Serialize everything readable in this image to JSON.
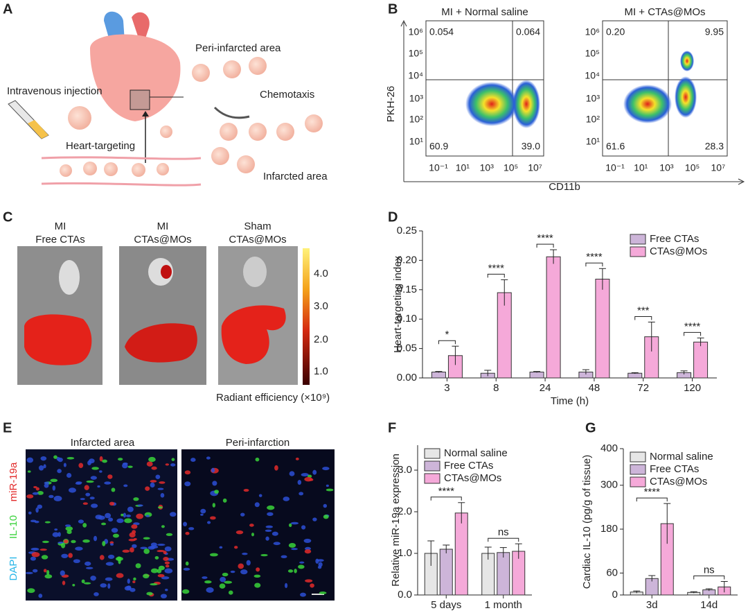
{
  "panel_a": {
    "letter": "A",
    "peri_label": "Peri-infarcted area",
    "injection_label": "Intravenous injection",
    "chemotaxis_label": "Chemotaxis",
    "targeting_label": "Heart-targeting",
    "infarct_label": "Infarcted area"
  },
  "panel_b": {
    "letter": "B",
    "x_label": "CD11b",
    "y_label": "PKH-26",
    "plots": [
      {
        "title": "MI + Normal saline",
        "quadrants": [
          "0.054",
          "0.064",
          "60.9",
          "39.0"
        ]
      },
      {
        "title": "MI + CTAs@MOs",
        "quadrants": [
          "0.20",
          "9.95",
          "61.6",
          "28.3"
        ]
      }
    ],
    "x_ticks": [
      "10⁻¹",
      "10¹",
      "10³",
      "10⁵",
      "10⁷"
    ],
    "y_ticks": [
      "10⁶",
      "10⁵",
      "10⁴",
      "10³",
      "10²",
      "10¹"
    ]
  },
  "panel_c": {
    "letter": "C",
    "groups": [
      [
        "MI",
        "Free CTAs"
      ],
      [
        "MI",
        "CTAs@MOs"
      ],
      [
        "Sham",
        "CTAs@MOs"
      ]
    ],
    "colorbar_ticks": [
      "4.0",
      "3.0",
      "2.0",
      "1.0"
    ],
    "colorbar_label": "Radiant efficiency (×10⁹)"
  },
  "panel_e": {
    "letter": "E",
    "titles": [
      "Infarcted area",
      "Peri-infarction"
    ],
    "channels": [
      "miR-19a",
      "IL-10",
      "DAPI"
    ]
  },
  "chart_data": [
    {
      "type": "bar",
      "letter": "D",
      "y_label": "Heart-targeting index",
      "x_label": "Time (h)",
      "categories": [
        "3",
        "8",
        "24",
        "48",
        "72",
        "120"
      ],
      "series": [
        {
          "name": "Free CTAs",
          "color": "#cdb5d9",
          "values": [
            0.01,
            0.008,
            0.01,
            0.01,
            0.008,
            0.009
          ],
          "errors": [
            0.001,
            0.005,
            0.001,
            0.004,
            0.001,
            0.003
          ]
        },
        {
          "name": "CTAs@MOs",
          "color": "#f5a9d9",
          "values": [
            0.038,
            0.145,
            0.206,
            0.168,
            0.07,
            0.061
          ],
          "errors": [
            0.016,
            0.022,
            0.012,
            0.018,
            0.025,
            0.007
          ]
        }
      ],
      "significance": [
        "*",
        "****",
        "****",
        "****",
        "***",
        "****"
      ],
      "ylim": [
        0,
        0.25
      ],
      "yticks": [
        {
          "value": 0,
          "label": "0.00"
        },
        {
          "value": 0.05,
          "label": "0.05"
        },
        {
          "value": 0.1,
          "label": "0.10"
        },
        {
          "value": 0.15,
          "label": "0.15"
        },
        {
          "value": 0.2,
          "label": "0.20"
        },
        {
          "value": 0.25,
          "label": "0.25"
        }
      ],
      "legend": "upper right"
    },
    {
      "type": "bar",
      "letter": "F",
      "y_label": "Relative miR-19a expression",
      "categories": [
        "5 days",
        "1 month"
      ],
      "series": [
        {
          "name": "Normal saline",
          "color": "#e6e6e6",
          "values": [
            1.0,
            1.0
          ],
          "errors": [
            0.3,
            0.15
          ]
        },
        {
          "name": "Free CTAs",
          "color": "#cdb5d9",
          "values": [
            1.1,
            1.02
          ],
          "errors": [
            0.1,
            0.12
          ]
        },
        {
          "name": "CTAs@MOs",
          "color": "#f5a9d9",
          "values": [
            1.97,
            1.05
          ],
          "errors": [
            0.25,
            0.18
          ]
        }
      ],
      "significance": [
        "****",
        "ns"
      ],
      "ylim": [
        0,
        3.6
      ],
      "yticks": [
        {
          "value": 0,
          "label": "0.0"
        },
        {
          "value": 1,
          "label": "1.0"
        },
        {
          "value": 2,
          "label": "2.0"
        },
        {
          "value": 3,
          "label": "3.0"
        }
      ],
      "legend": "upper left"
    },
    {
      "type": "bar",
      "letter": "G",
      "y_label": "Cardiac IL-10 (pg/g of tissue)",
      "categories": [
        "3d",
        "14d"
      ],
      "series": [
        {
          "name": "Normal saline",
          "color": "#e6e6e6",
          "values": [
            8,
            7
          ],
          "errors": [
            3,
            2
          ]
        },
        {
          "name": "Free CTAs",
          "color": "#cdb5d9",
          "values": [
            45,
            14
          ],
          "errors": [
            8,
            3
          ]
        },
        {
          "name": "CTAs@MOs",
          "color": "#f5a9d9",
          "values": [
            195,
            22
          ],
          "errors": [
            55,
            15
          ]
        }
      ],
      "significance": [
        "****",
        "ns"
      ],
      "ylim": [
        0,
        400
      ],
      "yticks": [
        0,
        60,
        180,
        300,
        400
      ],
      "legend": "upper left"
    }
  ]
}
